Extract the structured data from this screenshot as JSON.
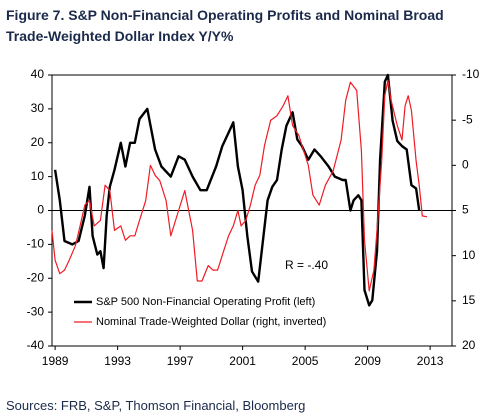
{
  "chart_data": {
    "type": "line",
    "title": "Figure 7.  S&P Non-Financial Operating Profits and Nominal Broad",
    "subtitle": "Trade-Weighted Dollar Index Y/Y%",
    "source": "Sources: FRB, S&P, Thomson Financial, Bloomberg",
    "annotation": "R = -.40",
    "legend": "lower left",
    "xlim": [
      1988.8,
      2014.4
    ],
    "xticks": [
      1989,
      1993,
      1997,
      2001,
      2005,
      2009,
      2013
    ],
    "ylim": [
      -40,
      40
    ],
    "yticks": [
      -40,
      -30,
      -20,
      -10,
      0,
      10,
      20,
      30,
      40
    ],
    "y2lim": [
      -10,
      20
    ],
    "y2_inverted": true,
    "y2ticks": [
      -10,
      -5,
      0,
      5,
      10,
      15,
      20
    ],
    "series": [
      {
        "name": "S&P 500 Non-Financial Operating Profit (left)",
        "color": "#000000",
        "axis": "y",
        "x": [
          1989.0,
          1989.3,
          1989.6,
          1990.1,
          1990.5,
          1990.9,
          1991.2,
          1991.4,
          1991.7,
          1991.9,
          1992.1,
          1992.3,
          1992.5,
          1992.8,
          1993.2,
          1993.5,
          1993.8,
          1994.1,
          1994.4,
          1994.9,
          1995.4,
          1995.8,
          1996.4,
          1996.9,
          1997.3,
          1997.8,
          1998.3,
          1998.7,
          1999.3,
          1999.7,
          2000.1,
          2000.4,
          2000.7,
          2001.0,
          2001.3,
          2001.6,
          2002.0,
          2002.3,
          2002.6,
          2002.9,
          2003.2,
          2003.5,
          2003.8,
          2004.2,
          2004.5,
          2004.8,
          2005.2,
          2005.6,
          2006.0,
          2006.5,
          2006.9,
          2007.4,
          2007.6,
          2007.9,
          2008.1,
          2008.4,
          2008.6,
          2008.8,
          2009.1,
          2009.3,
          2009.6,
          2009.8,
          2010.1,
          2010.3,
          2010.6,
          2010.9,
          2011.2,
          2011.5,
          2011.8,
          2012.1,
          2012.3
        ],
        "values": [
          12,
          3,
          -9,
          -10,
          -9,
          -1.5,
          7,
          -7.5,
          -13,
          -12,
          -17,
          -1.5,
          7,
          12,
          20,
          13,
          20,
          20,
          27,
          30,
          18,
          13,
          10,
          16,
          15,
          10,
          6,
          6,
          13,
          19,
          23,
          26,
          13,
          6,
          -7.5,
          -18,
          -21,
          -9,
          3,
          7,
          9,
          18,
          25,
          29,
          21,
          19,
          15,
          18,
          16,
          13,
          10,
          9,
          9,
          0,
          3,
          4.5,
          3,
          -23.5,
          -28,
          -26.5,
          -12,
          15,
          38,
          40,
          26.5,
          20.5,
          19,
          18,
          7.5,
          6.5,
          0
        ]
      },
      {
        "name": "Nominal Trade-Weighted Dollar (right, inverted)",
        "color": "#ee1c25",
        "axis": "y2",
        "x": [
          1988.8,
          1989.0,
          1989.3,
          1989.6,
          1989.9,
          1990.3,
          1990.6,
          1990.9,
          1991.2,
          1991.5,
          1991.9,
          1992.2,
          1992.5,
          1992.8,
          1993.2,
          1993.5,
          1993.8,
          1994.1,
          1994.4,
          1994.8,
          1995.1,
          1995.4,
          1995.7,
          1996.1,
          1996.4,
          1996.9,
          1997.3,
          1997.8,
          1998.1,
          1998.4,
          1998.8,
          1999.1,
          1999.4,
          1999.8,
          2000.1,
          2000.4,
          2000.7,
          2000.9,
          2001.2,
          2001.5,
          2001.8,
          2002.1,
          2002.4,
          2002.8,
          2003.2,
          2003.6,
          2003.9,
          2004.2,
          2004.6,
          2004.8,
          2005.2,
          2005.5,
          2005.9,
          2006.3,
          2006.8,
          2007.3,
          2007.6,
          2007.9,
          2008.3,
          2008.6,
          2008.8,
          2009.1,
          2009.4,
          2009.6,
          2009.9,
          2010.1,
          2010.3,
          2010.5,
          2010.9,
          2011.2,
          2011.4,
          2011.6,
          2011.8,
          2012.1,
          2012.3,
          2012.5,
          2012.8
        ],
        "values": [
          7.2,
          10.5,
          12,
          11.6,
          10.5,
          8.9,
          6.7,
          4.4,
          3.9,
          6.7,
          6.1,
          2.2,
          2.8,
          7.2,
          6.7,
          8.3,
          7.8,
          7.8,
          6.1,
          3.9,
          0,
          1.1,
          1.7,
          3.9,
          7.8,
          5,
          2.8,
          7.2,
          12.8,
          12.8,
          11.1,
          11.6,
          11.6,
          9.4,
          7.8,
          6.7,
          5,
          6.7,
          6.1,
          4.4,
          2.2,
          1.1,
          -2.2,
          -5,
          -5.5,
          -6.6,
          -7.7,
          -4.4,
          -3.3,
          -2.2,
          0,
          3.3,
          4.4,
          2.2,
          0.6,
          -2.8,
          -7.2,
          -9.2,
          -8.3,
          -1.6,
          8.3,
          13.9,
          11.6,
          7.2,
          -0.5,
          -7.7,
          -9.4,
          -7.2,
          -4.4,
          -2.8,
          -6.6,
          -7.7,
          -6.1,
          -0.5,
          2.2,
          5.6,
          5.7
        ]
      }
    ]
  }
}
